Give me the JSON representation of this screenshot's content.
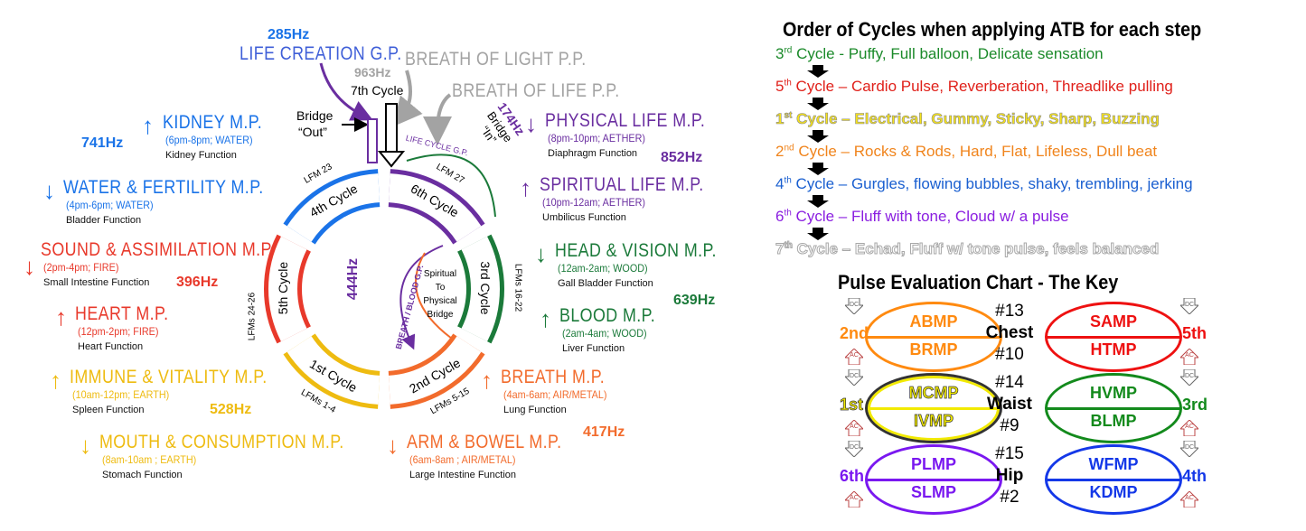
{
  "colors": {
    "blue": "#1a73e8",
    "purple": "#6a2ea0",
    "green": "#1b7a3a",
    "red": "#e8392b",
    "orange": "#f26b2c",
    "yellow": "#eebb10",
    "gray": "#a3a3a3"
  },
  "top": {
    "life_creation_hz": "285Hz",
    "life_creation": "LIFE CREATION G.P.",
    "seventh_hz": "963Hz",
    "seventh_cycle": "7th Cycle",
    "breath_of_light": "BREATH OF LIGHT P.P.",
    "breath_of_life": "BREATH OF LIFE P.P.",
    "bridge_out_1": "Bridge",
    "bridge_out_2": "“Out”",
    "bridge_in_hz": "174Hz",
    "bridge_in_1": "Bridge",
    "bridge_in_2": "“In”"
  },
  "ring": {
    "segments": [
      {
        "label": "5th Cycle",
        "lfm": "LFMs 24-26",
        "color": "#e8392b"
      },
      {
        "label": "4th Cycle",
        "lfm": "LFM 23",
        "color": "#1a73e8"
      },
      {
        "label": "6th Cycle",
        "lfm": "LFM 27",
        "color": "#6a2ea0"
      },
      {
        "label": "3rd Cycle",
        "lfm": "LFMs 16-22",
        "color": "#1b7a3a"
      },
      {
        "label": "2nd Cycle",
        "lfm": "LFMs 5-15",
        "color": "#f26b2c"
      },
      {
        "label": "1st Cycle",
        "lfm": "LFMs 1-4",
        "color": "#eebb10"
      }
    ],
    "life_cycle_gp": "LIFE CYCLE G.P.",
    "breath_blood_gp": "BREATH / BLOOD G.P.",
    "center_hz": "444Hz",
    "center_lines": [
      "Spiritual",
      "To",
      "Physical",
      "Bridge"
    ]
  },
  "meridians": [
    {
      "id": "kidney",
      "name": "KIDNEY M.P.",
      "time": "(6pm-8pm; WATER)",
      "function": "Kidney Function",
      "hz": "741Hz",
      "dir": "up"
    },
    {
      "id": "water",
      "name": "WATER & FERTILITY M.P.",
      "time": "(4pm-6pm; WATER)",
      "function": "Bladder Function",
      "dir": "down"
    },
    {
      "id": "sound",
      "name": "SOUND & ASSIMILATION M.P.",
      "time": "(2pm-4pm; FIRE)",
      "function": "Small Intestine Function",
      "hz": "396Hz",
      "dir": "down"
    },
    {
      "id": "heart",
      "name": "HEART M.P.",
      "time": "(12pm-2pm; FIRE)",
      "function": "Heart Function",
      "dir": "up"
    },
    {
      "id": "immune",
      "name": "IMMUNE & VITALITY M.P.",
      "time": "(10am-12pm; EARTH)",
      "function": "Spleen Function",
      "hz": "528Hz",
      "dir": "up"
    },
    {
      "id": "mouth",
      "name": "MOUTH & CONSUMPTION M.P.",
      "time": "(8am-10am ; EARTH)",
      "function": "Stomach Function",
      "dir": "down"
    },
    {
      "id": "physical",
      "name": "PHYSICAL LIFE M.P.",
      "time": "(8pm-10pm; AETHER)",
      "function": "Diaphragm Function",
      "hz": "852Hz",
      "dir": "down"
    },
    {
      "id": "spiritual",
      "name": "SPIRITUAL LIFE M.P.",
      "time": "(10pm-12am; AETHER)",
      "function": "Umbilicus Function",
      "dir": "up"
    },
    {
      "id": "head",
      "name": "HEAD & VISION M.P.",
      "time": "(12am-2am; WOOD)",
      "function": "Gall Bladder Function",
      "hz": "639Hz",
      "dir": "down"
    },
    {
      "id": "blood",
      "name": "BLOOD M.P.",
      "time": "(2am-4am; WOOD)",
      "function": "Liver Function",
      "dir": "up"
    },
    {
      "id": "breath",
      "name": "BREATH M.P.",
      "time": "(4am-6am; AIR/METAL)",
      "function": "Lung Function",
      "hz": "417Hz",
      "dir": "up"
    },
    {
      "id": "arm",
      "name": "ARM & BOWEL M.P.",
      "time": "(6am-8am ; AIR/METAL)",
      "function": "Large Intestine Function",
      "dir": "down"
    }
  ],
  "order": {
    "title": "Order of Cycles when applying ATB for each step",
    "steps": [
      {
        "num": "3",
        "sup": "rd",
        "text": " Cycle - Puffy, Full balloon, Delicate sensation",
        "color": "#1b8a2a"
      },
      {
        "num": "5",
        "sup": "th",
        "text": " Cycle – Cardio Pulse, Reverberation, Threadlike pulling",
        "color": "#e0201a"
      },
      {
        "num": "1",
        "sup": "st",
        "text": " Cycle – Electrical, Gummy, Sticky, Sharp, Buzzing",
        "color": "#f5e21a"
      },
      {
        "num": "2",
        "sup": "nd",
        "text": " Cycle – Rocks & Rods, Hard, Flat, Lifeless, Dull beat",
        "color": "#f0841c"
      },
      {
        "num": "4",
        "sup": "th",
        "text": " Cycle – Gurgles, flowing bubbles, shaky, trembling, jerking",
        "color": "#1a5fd0"
      },
      {
        "num": "6",
        "sup": "th",
        "text": " Cycle – Fluff with tone, Cloud w/ a pulse",
        "color": "#8a1ee0"
      },
      {
        "num": "7",
        "sup": "th",
        "text": " Cycle – Echad, Fluff w/ tone pulse, feels balanced",
        "color": "#ffffff"
      }
    ]
  },
  "pulse": {
    "title": "Pulse Evaluation Chart - The Key",
    "dc": "DC",
    "ac": "AC",
    "rows": [
      {
        "left": {
          "top": "ABMP",
          "bottom": "BRMP",
          "cycle": "2nd",
          "color": "#ff8a10"
        },
        "mid": [
          "#13",
          "Chest",
          "#10"
        ],
        "right": {
          "top": "SAMP",
          "bottom": "HTMP",
          "cycle": "5th",
          "color": "#ee1111"
        }
      },
      {
        "left": {
          "top": "MCMP",
          "bottom": "IVMP",
          "cycle": "1st",
          "color": "#f2ea00"
        },
        "mid": [
          "#14",
          "Waist",
          "#9"
        ],
        "right": {
          "top": "HVMP",
          "bottom": "BLMP",
          "cycle": "3rd",
          "color": "#138a1c"
        }
      },
      {
        "left": {
          "top": "PLMP",
          "bottom": "SLMP",
          "cycle": "6th",
          "color": "#7a18f0"
        },
        "mid": [
          "#15",
          "Hip",
          "#2"
        ],
        "right": {
          "top": "WFMP",
          "bottom": "KDMP",
          "cycle": "4th",
          "color": "#1438e8"
        }
      }
    ]
  }
}
